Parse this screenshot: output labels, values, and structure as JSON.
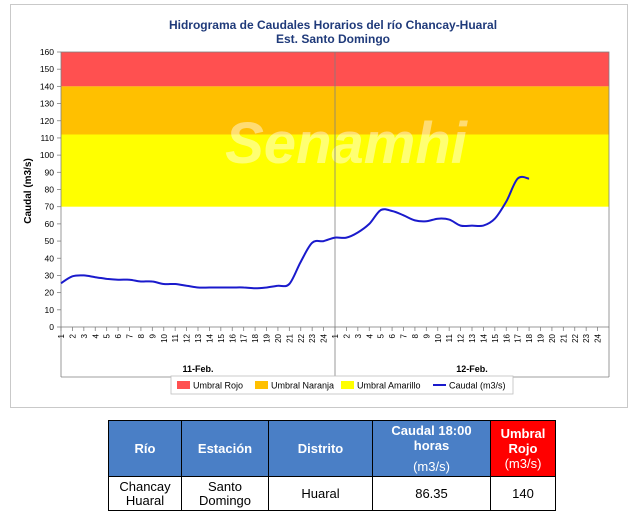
{
  "watermark": "Senamhi",
  "colors": {
    "umbral_rojo": "#ff5050",
    "umbral_naranja": "#ffc000",
    "umbral_amarillo": "#ffff00",
    "caudal": "#1a1acc",
    "header_blue": "#4a7fc6",
    "header_red": "#ff0000"
  },
  "chart_data": {
    "type": "line",
    "title": "Hidrograma de Caudales Horarios del río Chancay-Huaral",
    "subtitle": "Est. Santo Domingo",
    "ylabel": "Caudal  (m3/s)",
    "ylim": [
      0,
      160
    ],
    "yticks": [
      0,
      10,
      20,
      30,
      40,
      50,
      60,
      70,
      80,
      90,
      100,
      110,
      120,
      130,
      140,
      150,
      160
    ],
    "xticks": [
      "1",
      "2",
      "3",
      "4",
      "5",
      "6",
      "7",
      "8",
      "9",
      "10",
      "11",
      "12",
      "13",
      "14",
      "15",
      "16",
      "17",
      "18",
      "19",
      "20",
      "21",
      "22",
      "23",
      "24",
      "1",
      "2",
      "3",
      "4",
      "5",
      "6",
      "7",
      "8",
      "9",
      "10",
      "11",
      "12",
      "13",
      "14",
      "15",
      "16",
      "17",
      "18",
      "19",
      "20",
      "21",
      "22",
      "23",
      "24"
    ],
    "day_labels": [
      "11-Feb.",
      "12-Feb."
    ],
    "thresholds": [
      {
        "name": "Umbral Rojo",
        "from": 140,
        "to": 160
      },
      {
        "name": "Umbral Naranja",
        "from": 112,
        "to": 140
      },
      {
        "name": "Umbral Amarillo",
        "from": 70,
        "to": 112
      }
    ],
    "series": [
      {
        "name": "Caudal (m3/s)",
        "x": [
          1,
          2,
          3,
          4,
          5,
          6,
          7,
          8,
          9,
          10,
          11,
          12,
          13,
          14,
          15,
          16,
          17,
          18,
          19,
          20,
          21,
          22,
          23,
          24,
          25,
          26,
          27,
          28,
          29,
          30,
          31,
          32,
          33,
          34,
          35,
          36,
          37,
          38,
          39,
          40,
          41,
          42
        ],
        "values": [
          25.5,
          29.5,
          30,
          29,
          28,
          27.5,
          27.5,
          26.5,
          26.5,
          25,
          25,
          24,
          23,
          23,
          23,
          23,
          23,
          22.5,
          23,
          24,
          25,
          38,
          49,
          50,
          52,
          52,
          55,
          60,
          68,
          67.5,
          65,
          62,
          61.5,
          63,
          62.5,
          59,
          59,
          59,
          63,
          73,
          86.35,
          86.35
        ]
      }
    ],
    "legend": [
      "Umbral Rojo",
      "Umbral Naranja",
      "Umbral Amarillo",
      "Caudal (m3/s)"
    ],
    "legend_position": "bottom"
  },
  "table": {
    "headers": {
      "rio": "Río",
      "estacion": "Estación",
      "distrito": "Distrito",
      "caudal_line1": "Caudal 18:00 horas",
      "caudal_line2": "(m3/s)",
      "umbral_line1": "Umbral",
      "umbral_line2": "Rojo",
      "umbral_line3": "(m3/s)"
    },
    "row": {
      "rio_line1": "Chancay",
      "rio_line2": "Huaral",
      "estacion_line1": "Santo",
      "estacion_line2": "Domingo",
      "distrito": "Huaral",
      "caudal": "86.35",
      "umbral": "140"
    }
  }
}
